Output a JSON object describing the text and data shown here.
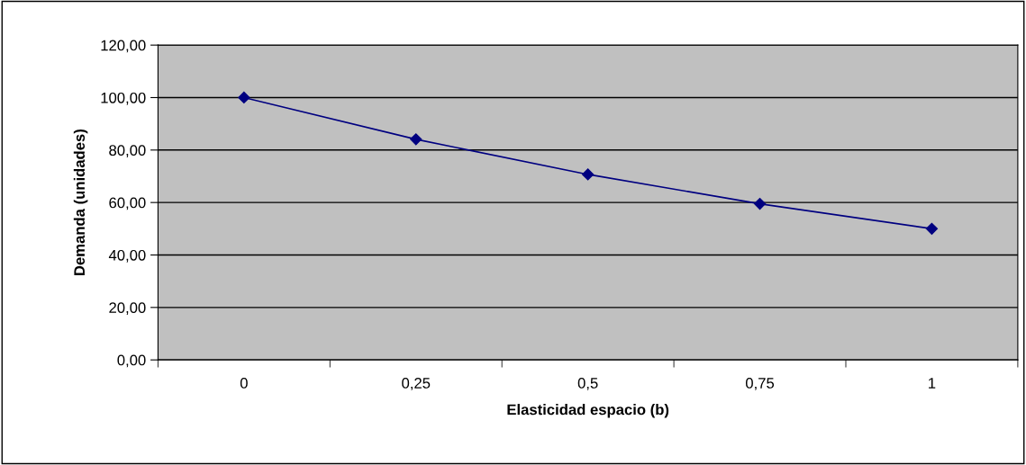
{
  "chart_data": {
    "type": "line",
    "xlabel": "Elasticidad espacio (b)",
    "ylabel": "Demanda (unidades)",
    "categories": [
      "0",
      "0,25",
      "0,5",
      "0,75",
      "1"
    ],
    "series": [
      {
        "color": "#000080",
        "values": [
          100,
          84.1,
          70.7,
          59.5,
          50
        ]
      }
    ],
    "ylim": [
      0,
      120
    ],
    "yticks": [
      {
        "value": 0,
        "label": "0,00"
      },
      {
        "value": 20,
        "label": "20,00"
      },
      {
        "value": 40,
        "label": "40,00"
      },
      {
        "value": 60,
        "label": "60,00"
      },
      {
        "value": 80,
        "label": "80,00"
      },
      {
        "value": 100,
        "label": "100,00"
      },
      {
        "value": 120,
        "label": "120,00"
      }
    ],
    "grid": "y",
    "marker": "diamond",
    "line_style": "solid"
  }
}
